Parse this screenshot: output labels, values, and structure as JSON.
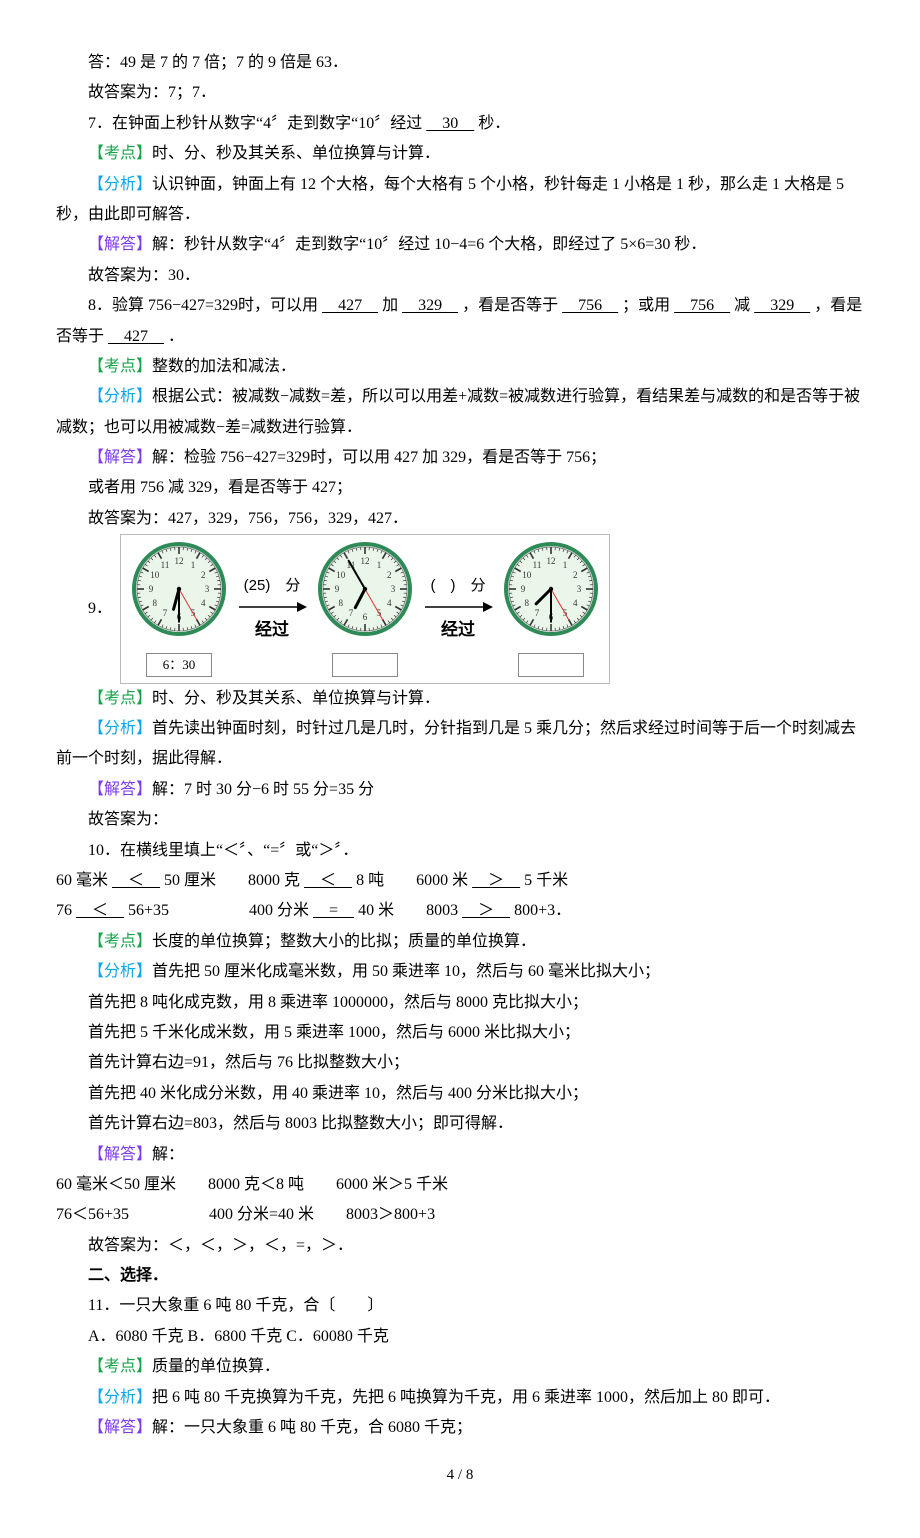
{
  "q6": {
    "ans_line": "答：49 是 7 的 7 倍；7 的 9 倍是 63．",
    "final": "故答案为：7；7．"
  },
  "q7": {
    "stem_a": "7．在钟面上秒针从数字“4〞走到数字“10〞经过",
    "blank": "　30　",
    "stem_b": "秒．",
    "exam_label": "【考点】",
    "exam": "时、分、秒及其关系、单位换算与计算．",
    "anal_label": "【分析】",
    "anal": "认识钟面，钟面上有 12 个大格，每个大格有 5 个小格，秒针每走 1 小格是 1 秒，那么走 1 大格是 5 秒，由此即可解答．",
    "sol_label": "【解答】",
    "sol": "解：秒针从数字“4〞走到数字“10〞经过 10−4=6 个大格，即经过了 5×6=30 秒．",
    "final": "故答案为：30．"
  },
  "q8": {
    "stem_a": "8．验算 756−427=329时，可以用",
    "b1": "　427　",
    "mid1": "加",
    "b2": "　329　",
    "mid2": "，看是否等于",
    "b3": "　756　",
    "mid3": "；或用",
    "b4": "　756　",
    "mid4": "减",
    "b5": "　329　",
    "mid5": "，看是否等于",
    "b6": "　427　",
    "tail": "．",
    "exam_label": "【考点】",
    "exam": "整数的加法和减法．",
    "anal_label": "【分析】",
    "anal": "根据公式：被减数−减数=差，所以可以用差+减数=被减数进行验算，看结果差与减数的和是否等于被减数；也可以用被减数−差=减数进行验算．",
    "sol_label": "【解答】",
    "sol1": "解：检验 756−427=329时，可以用 427 加 329，看是否等于 756；",
    "sol2": "或者用 756 减 329，看是否等于 427；",
    "final": "故答案为：427，329，756，756，329，427．"
  },
  "q9": {
    "num": "9．",
    "clocks": {
      "c1": {
        "hour": 6,
        "minute": 30,
        "timebox": "6：30"
      },
      "arrow1": {
        "label": "(25)　分",
        "pass": "经过"
      },
      "c2": {
        "hour": 6,
        "minute": 55,
        "timebox": ""
      },
      "arrow2": {
        "label": "(　)　分",
        "pass": "经过"
      },
      "c3": {
        "hour": 7,
        "minute": 30,
        "timebox": ""
      },
      "face_fill": "#eaf6ea",
      "ring_color": "#2e8b57",
      "tick_color": "#333",
      "hand_color": "#000",
      "second_color": "#d33",
      "radius": 42
    },
    "exam_label": "【考点】",
    "exam": "时、分、秒及其关系、单位换算与计算．",
    "anal_label": "【分析】",
    "anal": "首先读出钟面时刻，时针过几是几时，分针指到几是 5 乘几分；然后求经过时间等于后一个时刻减去前一个时刻，据此得解．",
    "sol_label": "【解答】",
    "sol": "解：7 时 30 分−6 时 55 分=35 分",
    "final": "故答案为："
  },
  "q10": {
    "stem": "10．在横线里填上“＜〞、“=〞或“＞〞．",
    "row1": {
      "a1": "60 毫米",
      "b1": "　＜　",
      "c1": "50 厘米　　8000 克",
      "b2": "　＜　",
      "c2": "8 吨　　6000 米",
      "b3": "　＞　",
      "c3": "5 千米"
    },
    "row2": {
      "a1": "76",
      "b1": "　＜　",
      "c1": "56+35　　　　　400 分米",
      "b2": "　=　",
      "c2": "40 米　　8003",
      "b3": "　＞　",
      "c3": "800+3．"
    },
    "exam_label": "【考点】",
    "exam": "长度的单位换算；整数大小的比拟；质量的单位换算．",
    "anal_label": "【分析】",
    "anal1": "首先把 50 厘米化成毫米数，用 50 乘进率 10，然后与 60 毫米比拟大小；",
    "anal2": "首先把 8 吨化成克数，用 8 乘进率 1000000，然后与 8000 克比拟大小；",
    "anal3": "首先把 5 千米化成米数，用 5 乘进率 1000，然后与 6000 米比拟大小；",
    "anal4": "首先计算右边=91，然后与 76 比拟整数大小；",
    "anal5": "首先把 40 米化成分米数，用 40 乘进率 10，然后与 400 分米比拟大小；",
    "anal6": "首先计算右边=803，然后与 8003 比拟整数大小；即可得解．",
    "sol_label": "【解答】",
    "sol_head": "解：",
    "sol1": "60 毫米＜50 厘米　　8000 克＜8 吨　　6000 米＞5 千米",
    "sol2": "76＜56+35　　　　　400 分米=40 米　　8003＞800+3",
    "final": "故答案为：＜，＜，＞，＜，=，＞．"
  },
  "sec2": {
    "title": "二、选择．"
  },
  "q11": {
    "stem": "11．一只大象重 6 吨 80 千克，合〔　　〕",
    "opts": "A．6080 千克 B．6800 千克 C．60080 千克",
    "exam_label": "【考点】",
    "exam": "质量的单位换算．",
    "anal_label": "【分析】",
    "anal": "把 6 吨 80 千克换算为千克，先把 6 吨换算为千克，用 6 乘进率 1000，然后加上 80 即可．",
    "sol_label": "【解答】",
    "sol": "解：一只大象重 6 吨 80 千克，合 6080 千克；"
  },
  "footer": "4 / 8"
}
